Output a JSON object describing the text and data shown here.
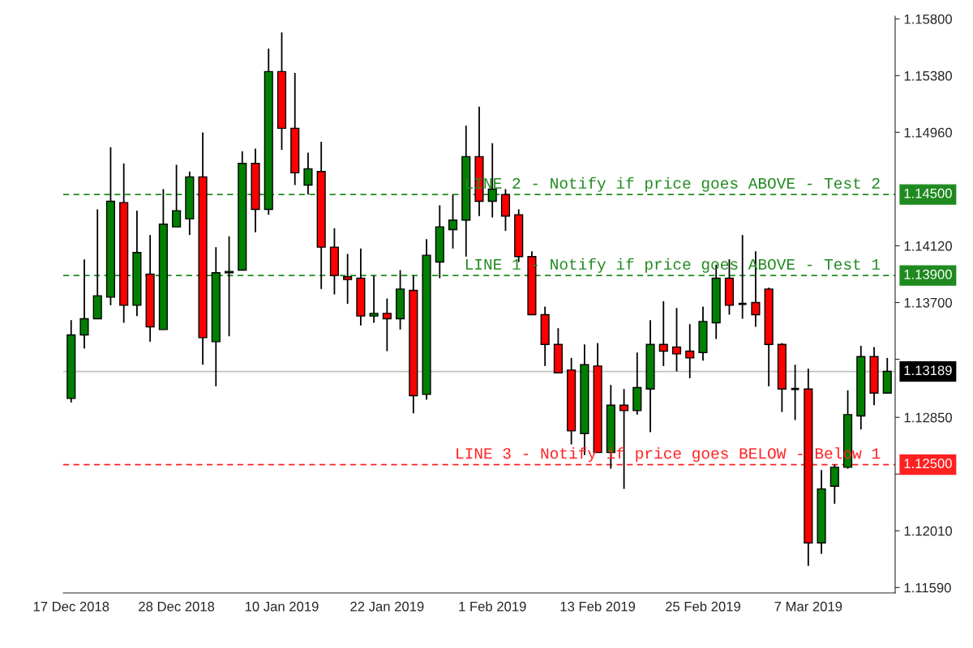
{
  "chart_data": {
    "type": "candlestick",
    "categories": [
      "17 Dec 2018",
      null,
      null,
      null,
      null,
      null,
      null,
      null,
      "28 Dec 2018",
      null,
      null,
      null,
      null,
      null,
      null,
      null,
      "10 Jan 2019",
      null,
      null,
      null,
      null,
      null,
      null,
      null,
      "22 Jan 2019",
      null,
      null,
      null,
      null,
      null,
      null,
      null,
      "1 Feb 2019",
      null,
      null,
      null,
      null,
      null,
      null,
      null,
      "13 Feb 2019",
      null,
      null,
      null,
      null,
      null,
      null,
      null,
      "25 Feb 2019",
      null,
      null,
      null,
      null,
      null,
      null,
      null,
      "7 Mar 2019",
      null,
      null,
      null,
      null,
      null,
      null
    ],
    "ohlc": [
      [
        1.1299,
        1.1357,
        1.1296,
        1.1346
      ],
      [
        1.1346,
        1.1402,
        1.1336,
        1.1358
      ],
      [
        1.1358,
        1.1439,
        1.1358,
        1.1375
      ],
      [
        1.1374,
        1.1485,
        1.1368,
        1.1445
      ],
      [
        1.1444,
        1.1473,
        1.1355,
        1.1368
      ],
      [
        1.1368,
        1.1438,
        1.136,
        1.1407
      ],
      [
        1.1391,
        1.142,
        1.1341,
        1.1352
      ],
      [
        1.135,
        1.1454,
        1.135,
        1.1428
      ],
      [
        1.1426,
        1.1472,
        1.1426,
        1.1438
      ],
      [
        1.1432,
        1.1467,
        1.142,
        1.1463
      ],
      [
        1.1463,
        1.1496,
        1.1324,
        1.1344
      ],
      [
        1.1341,
        1.1411,
        1.1308,
        1.1392
      ],
      [
        1.1392,
        1.1419,
        1.1345,
        1.1393
      ],
      [
        1.1394,
        1.1482,
        1.1394,
        1.1473
      ],
      [
        1.1473,
        1.1484,
        1.1422,
        1.1439
      ],
      [
        1.1439,
        1.1558,
        1.1435,
        1.1541
      ],
      [
        1.1541,
        1.157,
        1.1483,
        1.1499
      ],
      [
        1.1499,
        1.154,
        1.1457,
        1.1466
      ],
      [
        1.1457,
        1.1481,
        1.145,
        1.1469
      ],
      [
        1.1467,
        1.1489,
        1.138,
        1.1411
      ],
      [
        1.1411,
        1.1425,
        1.1376,
        1.139
      ],
      [
        1.1389,
        1.1406,
        1.1369,
        1.1387
      ],
      [
        1.1388,
        1.141,
        1.1353,
        1.136
      ],
      [
        1.136,
        1.139,
        1.1355,
        1.1362
      ],
      [
        1.1362,
        1.1373,
        1.1334,
        1.1358
      ],
      [
        1.1358,
        1.1394,
        1.135,
        1.138
      ],
      [
        1.1379,
        1.139,
        1.1288,
        1.1301
      ],
      [
        1.1302,
        1.1417,
        1.1298,
        1.1405
      ],
      [
        1.14,
        1.1442,
        1.1388,
        1.1426
      ],
      [
        1.1424,
        1.145,
        1.141,
        1.1431
      ],
      [
        1.1431,
        1.1501,
        1.1404,
        1.1478
      ],
      [
        1.1478,
        1.1515,
        1.1434,
        1.1445
      ],
      [
        1.1445,
        1.1488,
        1.1433,
        1.1454
      ],
      [
        1.145,
        1.1454,
        1.1423,
        1.1434
      ],
      [
        1.1435,
        1.1439,
        1.14,
        1.1404
      ],
      [
        1.1404,
        1.1408,
        1.1361,
        1.1361
      ],
      [
        1.1361,
        1.1367,
        1.1323,
        1.1339
      ],
      [
        1.1339,
        1.1351,
        1.1318,
        1.1318
      ],
      [
        1.132,
        1.1329,
        1.1265,
        1.1275
      ],
      [
        1.1273,
        1.1339,
        1.1257,
        1.1324
      ],
      [
        1.1323,
        1.134,
        1.1259,
        1.1259
      ],
      [
        1.1259,
        1.1309,
        1.1247,
        1.1294
      ],
      [
        1.1294,
        1.1306,
        1.1232,
        1.129
      ],
      [
        1.129,
        1.1333,
        1.1287,
        1.1307
      ],
      [
        1.1306,
        1.1357,
        1.1274,
        1.1339
      ],
      [
        1.1339,
        1.1371,
        1.1323,
        1.1334
      ],
      [
        1.1337,
        1.1366,
        1.1319,
        1.1332
      ],
      [
        1.1334,
        1.1354,
        1.1314,
        1.1329
      ],
      [
        1.1333,
        1.1367,
        1.1327,
        1.1356
      ],
      [
        1.1355,
        1.1398,
        1.1343,
        1.1388
      ],
      [
        1.1388,
        1.1402,
        1.1361,
        1.1368
      ],
      [
        1.1369,
        1.142,
        1.1358,
        1.1369
      ],
      [
        1.137,
        1.1408,
        1.1352,
        1.1361
      ],
      [
        1.138,
        1.1381,
        1.1308,
        1.1339
      ],
      [
        1.1339,
        1.134,
        1.1289,
        1.1306
      ],
      [
        1.1306,
        1.1324,
        1.1283,
        1.1306
      ],
      [
        1.1306,
        1.1321,
        1.1175,
        1.1192
      ],
      [
        1.1192,
        1.1246,
        1.1184,
        1.1232
      ],
      [
        1.1234,
        1.125,
        1.1221,
        1.1248
      ],
      [
        1.1248,
        1.1305,
        1.1247,
        1.1287
      ],
      [
        1.1286,
        1.1338,
        1.1276,
        1.133
      ],
      [
        1.133,
        1.1337,
        1.1294,
        1.1303
      ],
      [
        1.1303,
        1.1329,
        1.1303,
        1.1319
      ]
    ],
    "colors": [
      "#008000",
      "#008000",
      "#008000",
      "#008000",
      "#ff0000",
      "#008000",
      "#ff0000",
      "#008000",
      "#008000",
      "#008000",
      "#ff0000",
      "#008000",
      "#008000",
      "#008000",
      "#ff0000",
      "#008000",
      "#ff0000",
      "#ff0000",
      "#008000",
      "#ff0000",
      "#ff0000",
      "#ff0000",
      "#ff0000",
      "#008000",
      "#ff0000",
      "#008000",
      "#ff0000",
      "#008000",
      "#008000",
      "#008000",
      "#008000",
      "#ff0000",
      "#008000",
      "#ff0000",
      "#ff0000",
      "#ff0000",
      "#ff0000",
      "#ff0000",
      "#ff0000",
      "#008000",
      "#ff0000",
      "#008000",
      "#ff0000",
      "#008000",
      "#008000",
      "#ff0000",
      "#ff0000",
      "#ff0000",
      "#008000",
      "#008000",
      "#ff0000",
      "#000000",
      "#ff0000",
      "#ff0000",
      "#ff0000",
      "#000000",
      "#ff0000",
      "#008000",
      "#008000",
      "#008000",
      "#008000",
      "#ff0000",
      "#008000"
    ],
    "ylim": [
      1.1155,
      1.1582
    ],
    "yticks": [
      {
        "value": 1.158,
        "label": "1.15800"
      },
      {
        "value": 1.1538,
        "label": "1.15380"
      },
      {
        "value": 1.1496,
        "label": "1.14960"
      },
      {
        "value": 1.1412,
        "label": "1.14120"
      },
      {
        "value": 1.137,
        "label": "1.13700"
      },
      {
        "value": 1.1328,
        "label": null
      },
      {
        "value": 1.1285,
        "label": "1.12850"
      },
      {
        "value": 1.1243,
        "label": null
      },
      {
        "value": 1.1201,
        "label": "1.12010"
      },
      {
        "value": 1.1159,
        "label": "1.11590"
      }
    ],
    "ref_lines": [
      {
        "axis": "y",
        "value": 1.145,
        "label": "1.14500",
        "color": "#1f8a1f",
        "line_style": "dashed"
      },
      {
        "axis": "y",
        "value": 1.139,
        "label": "1.13900",
        "color": "#1f8a1f",
        "line_style": "dashed"
      },
      {
        "axis": "y",
        "value": 1.125,
        "label": "1.12500",
        "color": "#ff2020",
        "line_style": "dashed"
      },
      {
        "axis": "y",
        "value": 1.13189,
        "label": "1.13189",
        "color": "#c0c0c0",
        "line_style": "solid"
      }
    ],
    "annotations": [
      {
        "text": "LINE 2 - Notify if price goes ABOVE - Test 2",
        "y": 1.145
      },
      {
        "text": "LINE 1 - Notify if price goes ABOVE - Test 1",
        "y": 1.139
      },
      {
        "text": "LINE 3 - Notify if price goes BELOW - Below 1",
        "y": 1.125
      }
    ],
    "grid": false
  }
}
